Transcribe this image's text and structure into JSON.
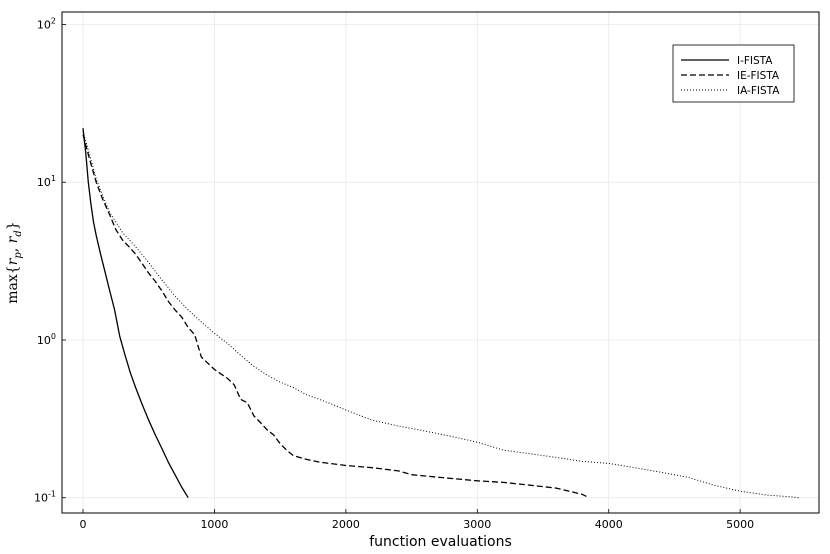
{
  "chart_data": {
    "type": "line",
    "title": "",
    "xlabel": "function evaluations",
    "ylabel": "max{r_p, r_d}",
    "ylabel_parts": {
      "pre": "max{",
      "a": "r",
      "a_sub": "p",
      "sep": ", ",
      "b": "r",
      "b_sub": "d",
      "post": "}"
    },
    "xlim": [
      -160,
      5600
    ],
    "ylim": [
      0.08,
      120
    ],
    "yscale": "log",
    "grid": true,
    "legend_position": "top-right",
    "x_ticks": [
      {
        "value": 0,
        "label": "0"
      },
      {
        "value": 1000,
        "label": "1000"
      },
      {
        "value": 2000,
        "label": "2000"
      },
      {
        "value": 3000,
        "label": "3000"
      },
      {
        "value": 4000,
        "label": "4000"
      },
      {
        "value": 5000,
        "label": "5000"
      }
    ],
    "y_ticks": [
      {
        "value": 0.1,
        "base": "10",
        "exp": "-1"
      },
      {
        "value": 1,
        "base": "10",
        "exp": "0"
      },
      {
        "value": 10,
        "base": "10",
        "exp": "1"
      },
      {
        "value": 100,
        "base": "10",
        "exp": "2"
      }
    ],
    "series": [
      {
        "name": "I-FISTA",
        "style": "solid",
        "color": "#000000",
        "x": [
          0,
          20,
          40,
          60,
          80,
          100,
          130,
          160,
          200,
          240,
          280,
          320,
          360,
          400,
          450,
          500,
          550,
          600,
          650,
          700,
          750,
          800
        ],
        "y": [
          22,
          15.5,
          10,
          7.3,
          5.6,
          4.6,
          3.6,
          2.85,
          2.1,
          1.55,
          1.05,
          0.8,
          0.62,
          0.5,
          0.39,
          0.31,
          0.25,
          0.205,
          0.167,
          0.14,
          0.117,
          0.1
        ]
      },
      {
        "name": "IE-FISTA",
        "style": "dashed",
        "color": "#000000",
        "x": [
          0,
          50,
          100,
          150,
          200,
          250,
          300,
          350,
          400,
          450,
          500,
          550,
          600,
          650,
          700,
          750,
          800,
          850,
          900,
          1000,
          1100,
          1150,
          1200,
          1250,
          1300,
          1350,
          1400,
          1450,
          1500,
          1550,
          1600,
          1700,
          1800,
          2000,
          2200,
          2400,
          2500,
          2700,
          3000,
          3200,
          3400,
          3600,
          3700,
          3800,
          3850
        ],
        "y": [
          20,
          14,
          10,
          7.8,
          6.3,
          5,
          4.3,
          3.9,
          3.5,
          3.05,
          2.65,
          2.35,
          2.05,
          1.75,
          1.55,
          1.4,
          1.2,
          1.08,
          0.78,
          0.65,
          0.57,
          0.52,
          0.42,
          0.4,
          0.33,
          0.3,
          0.27,
          0.25,
          0.22,
          0.2,
          0.185,
          0.175,
          0.168,
          0.16,
          0.155,
          0.148,
          0.14,
          0.135,
          0.128,
          0.125,
          0.12,
          0.115,
          0.11,
          0.105,
          0.1
        ]
      },
      {
        "name": "IA-FISTA",
        "style": "dotted",
        "color": "#000000",
        "x": [
          0,
          50,
          100,
          150,
          200,
          300,
          400,
          500,
          600,
          700,
          800,
          900,
          1000,
          1100,
          1200,
          1300,
          1400,
          1500,
          1600,
          1700,
          1800,
          1900,
          2000,
          2200,
          2400,
          2600,
          2800,
          3000,
          3200,
          3400,
          3600,
          3800,
          4000,
          4200,
          4400,
          4600,
          4800,
          5000,
          5200,
          5400,
          5450
        ],
        "y": [
          21,
          15,
          10.5,
          8.2,
          6.5,
          4.8,
          3.9,
          3.1,
          2.4,
          1.9,
          1.55,
          1.3,
          1.1,
          0.95,
          0.8,
          0.68,
          0.6,
          0.54,
          0.5,
          0.45,
          0.42,
          0.39,
          0.36,
          0.31,
          0.285,
          0.265,
          0.245,
          0.225,
          0.2,
          0.19,
          0.18,
          0.17,
          0.165,
          0.155,
          0.145,
          0.135,
          0.12,
          0.11,
          0.104,
          0.101,
          0.1
        ]
      }
    ]
  }
}
